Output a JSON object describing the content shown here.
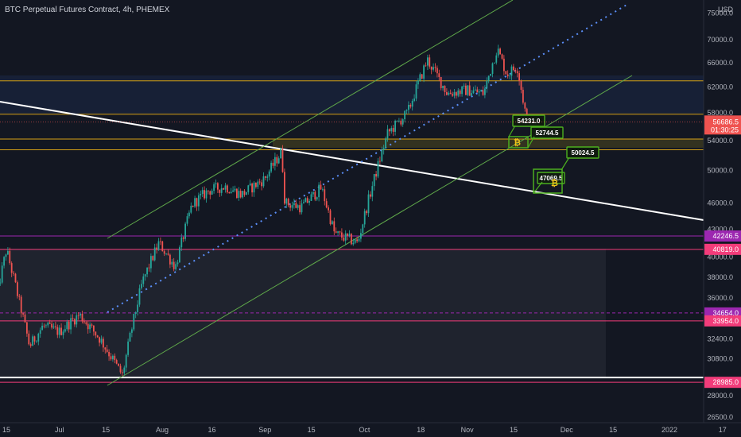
{
  "header": {
    "title": "BTC Perpetual Futures Contract, 4h, PHEMEX",
    "currency": "USD"
  },
  "colors": {
    "background": "#131722",
    "up_candle": "#26a69a",
    "down_candle": "#ef5350",
    "channel": "#5fa84a",
    "trend_white": "#ffffff",
    "dotted_blue": "#5b8ff9",
    "orange_level": "#d4a017",
    "pink_level": "#f23c7a",
    "purple_level": "#9c27b0",
    "callout_green": "#4caf1f"
  },
  "chart_data": {
    "type": "candlestick",
    "symbol": "BTC Perpetual Futures Contract",
    "interval": "4h",
    "exchange": "PHEMEX",
    "ylim": [
      26500,
      76000
    ],
    "y_scale": "log",
    "y_ticks": [
      "26500.0",
      "28000.0",
      "30800.0",
      "32400.0",
      "34000.0",
      "36000.0",
      "38000.0",
      "40000.0",
      "43000.0",
      "46000.0",
      "50000.0",
      "54000.0",
      "58000.0",
      "62000.0",
      "66000.0",
      "70000.0",
      "75000.0"
    ],
    "y_tick_values": [
      26500,
      28000,
      30800,
      32400,
      34000,
      36000,
      38000,
      40000,
      43000,
      46000,
      50000,
      54000,
      58000,
      62000,
      66000,
      70000,
      75000
    ],
    "x_ticks": [
      "15",
      "Jul",
      "15",
      "Aug",
      "16",
      "Sep",
      "15",
      "Oct",
      "18",
      "Nov",
      "15",
      "Dec",
      "15",
      "2022",
      "17"
    ],
    "last_price": "56686.5",
    "countdown": "01:30:25",
    "price_path": [
      {
        "date": "Jun 12",
        "price": 36000
      },
      {
        "date": "Jun 15",
        "price": 40800
      },
      {
        "date": "Jun 19",
        "price": 35500
      },
      {
        "date": "Jun 22",
        "price": 31800
      },
      {
        "date": "Jun 26",
        "price": 33500
      },
      {
        "date": "Jul 1",
        "price": 33000
      },
      {
        "date": "Jul 7",
        "price": 34500
      },
      {
        "date": "Jul 13",
        "price": 32500
      },
      {
        "date": "Jul 20",
        "price": 29500
      },
      {
        "date": "Jul 26",
        "price": 37500
      },
      {
        "date": "Jul 31",
        "price": 41500
      },
      {
        "date": "Aug 5",
        "price": 39000
      },
      {
        "date": "Aug 10",
        "price": 45800
      },
      {
        "date": "Aug 15",
        "price": 47500
      },
      {
        "date": "Aug 20",
        "price": 48000
      },
      {
        "date": "Aug 25",
        "price": 47000
      },
      {
        "date": "Sep 1",
        "price": 49000
      },
      {
        "date": "Sep 6",
        "price": 52500
      },
      {
        "date": "Sep 7",
        "price": 46000
      },
      {
        "date": "Sep 12",
        "price": 45500
      },
      {
        "date": "Sep 18",
        "price": 47800
      },
      {
        "date": "Sep 22",
        "price": 42500
      },
      {
        "date": "Sep 29",
        "price": 41500
      },
      {
        "date": "Oct 3",
        "price": 47500
      },
      {
        "date": "Oct 8",
        "price": 55000
      },
      {
        "date": "Oct 14",
        "price": 58000
      },
      {
        "date": "Oct 20",
        "price": 66500
      },
      {
        "date": "Oct 26",
        "price": 61000
      },
      {
        "date": "Nov 1",
        "price": 61500
      },
      {
        "date": "Nov 6",
        "price": 61000
      },
      {
        "date": "Nov 10",
        "price": 68500
      },
      {
        "date": "Nov 13",
        "price": 64000
      },
      {
        "date": "Nov 16",
        "price": 65500
      },
      {
        "date": "Nov 19",
        "price": 56686.5
      }
    ],
    "horizontal_levels": [
      {
        "value": 63000,
        "color": "orange",
        "label": ""
      },
      {
        "value": 57800,
        "color": "orange",
        "label": ""
      },
      {
        "value": 54231,
        "color": "orange",
        "label": ""
      },
      {
        "value": 52744.5,
        "color": "orange",
        "label": ""
      },
      {
        "value": 42246.5,
        "color": "purple",
        "label": "42246.5"
      },
      {
        "value": 40819,
        "color": "pink",
        "label": "40819.0"
      },
      {
        "value": 34654,
        "color": "purple",
        "label": "34654.0",
        "style": "dashed"
      },
      {
        "value": 33954,
        "color": "pink",
        "label": "33954.0"
      },
      {
        "value": 28985,
        "color": "pink",
        "label": "28985.0"
      },
      {
        "value": 29350,
        "color": "white",
        "label": ""
      }
    ],
    "callouts": [
      {
        "value": "54231.0"
      },
      {
        "value": "52744.5"
      },
      {
        "value": "50024.5"
      },
      {
        "value": "47069.5"
      }
    ],
    "annotations": [
      "ascending channel",
      "descending trendline",
      "dotted midline"
    ],
    "grid": false,
    "legend": "none"
  }
}
